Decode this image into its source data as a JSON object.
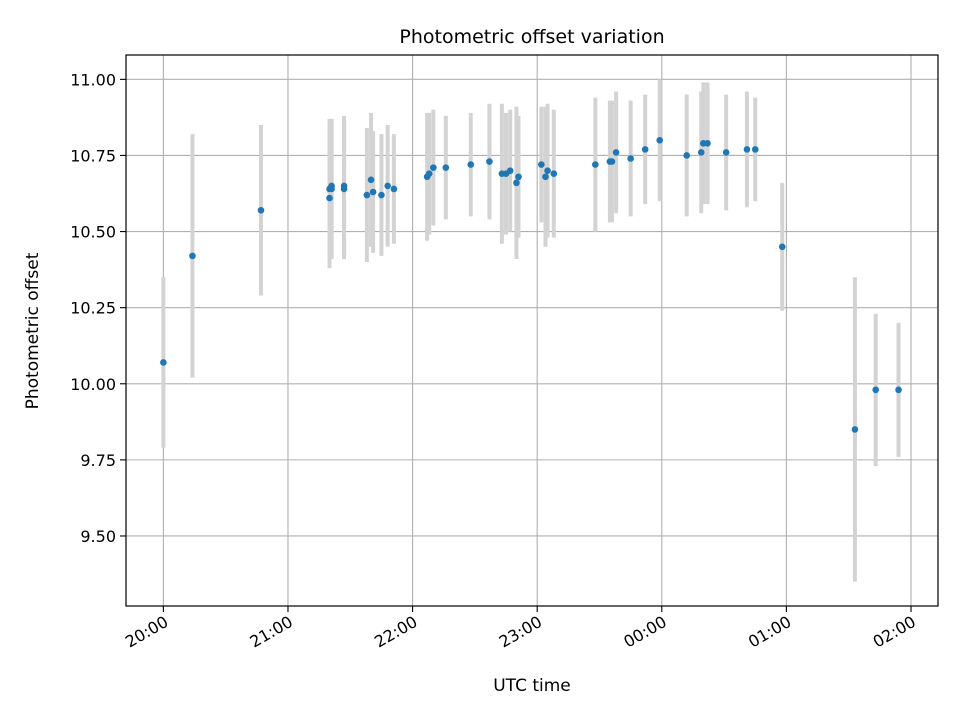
{
  "chart_data": {
    "type": "scatter",
    "title": "Photometric offset variation",
    "xlabel": "UTC time",
    "ylabel": "Photometric offset",
    "x_unit": "UTC time (HH:MM), night of observation; times after midnight are on the following day",
    "x_range": [
      "19:42",
      "02:13"
    ],
    "ylim": [
      9.27,
      11.08
    ],
    "x_ticks": [
      "20:00",
      "21:00",
      "22:00",
      "23:00",
      "00:00",
      "01:00",
      "02:00"
    ],
    "y_ticks": [
      "9.50",
      "9.75",
      "10.00",
      "10.25",
      "10.50",
      "10.75",
      "11.00"
    ],
    "grid": true,
    "colors": {
      "points": "#1f77b4",
      "errorbars": "#d3d3d3",
      "grid": "#b0b0b0"
    },
    "series": [
      {
        "x": [
          "20:00",
          "20:14",
          "20:47",
          "21:20",
          "21:20",
          "21:21",
          "21:21",
          "21:27",
          "21:27",
          "21:38",
          "21:40",
          "21:41",
          "21:45",
          "21:48",
          "21:51",
          "22:07",
          "22:08",
          "22:10",
          "22:16",
          "22:28",
          "22:37",
          "22:43",
          "22:45",
          "22:47",
          "22:50",
          "22:51",
          "23:02",
          "23:04",
          "23:05",
          "23:08",
          "23:28",
          "23:35",
          "23:36",
          "23:38",
          "23:45",
          "23:52",
          "23:59",
          "00:12",
          "00:19",
          "00:20",
          "00:22",
          "00:31",
          "00:41",
          "00:45",
          "00:58",
          "01:33",
          "01:43",
          "01:54"
        ],
        "y": [
          10.07,
          10.42,
          10.57,
          10.64,
          10.61,
          10.64,
          10.65,
          10.64,
          10.65,
          10.62,
          10.67,
          10.63,
          10.62,
          10.65,
          10.64,
          10.68,
          10.69,
          10.71,
          10.71,
          10.72,
          10.73,
          10.69,
          10.69,
          10.7,
          10.66,
          10.68,
          10.72,
          10.68,
          10.7,
          10.69,
          10.72,
          10.73,
          10.73,
          10.76,
          10.74,
          10.77,
          10.8,
          10.75,
          10.76,
          10.79,
          10.79,
          10.76,
          10.77,
          10.77,
          10.45,
          9.85,
          9.98,
          9.98
        ],
        "yerr": [
          0.28,
          0.4,
          0.28,
          0.23,
          0.23,
          0.23,
          0.22,
          0.23,
          0.23,
          0.22,
          0.22,
          0.2,
          0.2,
          0.2,
          0.18,
          0.21,
          0.2,
          0.19,
          0.17,
          0.17,
          0.19,
          0.23,
          0.2,
          0.2,
          0.25,
          0.2,
          0.19,
          0.23,
          0.22,
          0.21,
          0.22,
          0.2,
          0.2,
          0.2,
          0.19,
          0.18,
          0.2,
          0.2,
          0.2,
          0.2,
          0.2,
          0.19,
          0.19,
          0.17,
          0.21,
          0.5,
          0.25,
          0.22
        ]
      }
    ]
  }
}
